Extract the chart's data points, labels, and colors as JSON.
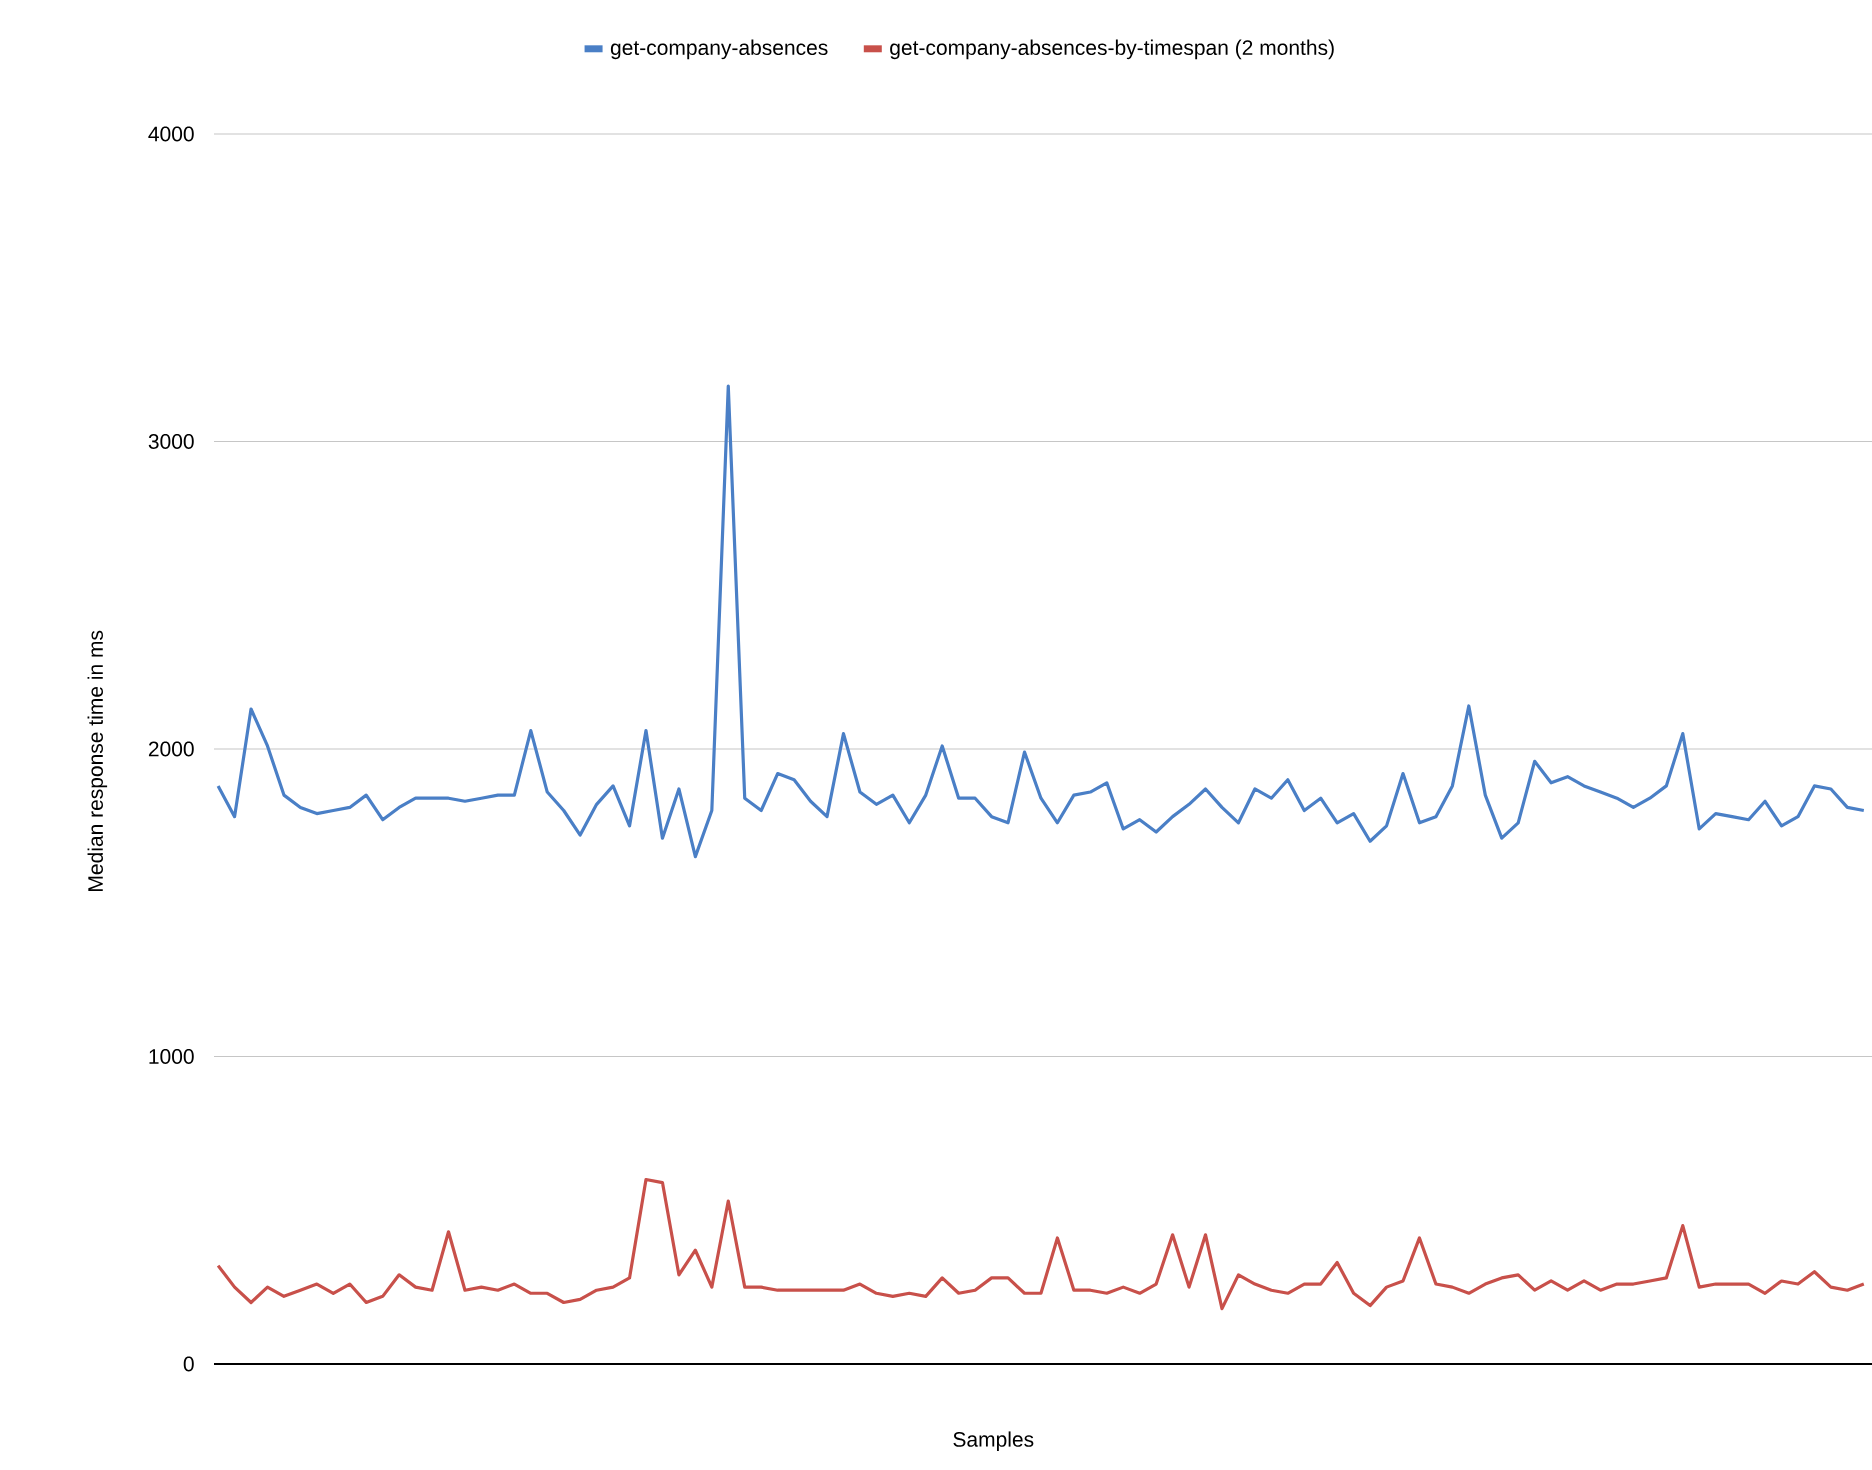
{
  "chart_data": {
    "type": "line",
    "xlabel": "Samples",
    "ylabel": "Median response time in ms",
    "categories": [
      null,
      null,
      null,
      null,
      null,
      null,
      null,
      null,
      null,
      null,
      null,
      null,
      null,
      null,
      null,
      null,
      null,
      null,
      null,
      null,
      null,
      null,
      null,
      null,
      null,
      null,
      null,
      null,
      null,
      null,
      null,
      null,
      null,
      null,
      null,
      null,
      null,
      null,
      null,
      null,
      null,
      null,
      null,
      null,
      null,
      null,
      null,
      null,
      null,
      null,
      null,
      null,
      null,
      null,
      null,
      null,
      null,
      null,
      null,
      null,
      null,
      null,
      null,
      null,
      null,
      null,
      null,
      null,
      null,
      null,
      null,
      null,
      null,
      null,
      null,
      null,
      null,
      null,
      null,
      null,
      null,
      null,
      null,
      null,
      null,
      null,
      null,
      null,
      null,
      null,
      null,
      null,
      null,
      null,
      null,
      null,
      null,
      null,
      null,
      null,
      null
    ],
    "series": [
      {
        "name": "get-company-absences",
        "color": "#4a7fc6",
        "values": [
          1880,
          1780,
          2130,
          2010,
          1850,
          1810,
          1790,
          1800,
          1810,
          1850,
          1770,
          1810,
          1840,
          1840,
          1840,
          1830,
          1840,
          1850,
          1850,
          2060,
          1860,
          1800,
          1720,
          1820,
          1880,
          1750,
          2060,
          1710,
          1870,
          1650,
          1800,
          3180,
          1840,
          1800,
          1920,
          1900,
          1830,
          1780,
          2050,
          1860,
          1820,
          1850,
          1760,
          1850,
          2010,
          1840,
          1840,
          1780,
          1760,
          1990,
          1840,
          1760,
          1850,
          1860,
          1890,
          1740,
          1770,
          1730,
          1780,
          1820,
          1870,
          1810,
          1760,
          1870,
          1840,
          1900,
          1800,
          1840,
          1760,
          1790,
          1700,
          1750,
          1920,
          1760,
          1780,
          1880,
          2140,
          1850,
          1710,
          1760,
          1960,
          1890,
          1910,
          1880,
          1860,
          1840,
          1810,
          1840,
          1880,
          2050,
          1740,
          1790,
          1780,
          1770,
          1830,
          1750,
          1780,
          1880,
          1870,
          1810,
          1800
        ]
      },
      {
        "name": "get-company-absences-by-timespan (2 months)",
        "color": "#c8504a",
        "values": [
          320,
          250,
          200,
          250,
          220,
          240,
          260,
          230,
          260,
          200,
          220,
          290,
          250,
          240,
          430,
          240,
          250,
          240,
          260,
          230,
          230,
          200,
          210,
          240,
          250,
          280,
          600,
          590,
          290,
          370,
          250,
          530,
          250,
          250,
          240,
          240,
          240,
          240,
          240,
          260,
          230,
          220,
          230,
          220,
          280,
          230,
          240,
          280,
          280,
          230,
          230,
          410,
          240,
          240,
          230,
          250,
          230,
          260,
          420,
          250,
          420,
          180,
          290,
          260,
          240,
          230,
          260,
          260,
          330,
          230,
          190,
          250,
          270,
          410,
          260,
          250,
          230,
          260,
          280,
          290,
          240,
          270,
          240,
          270,
          240,
          260,
          260,
          270,
          280,
          450,
          250,
          260,
          260,
          260,
          230,
          270,
          260,
          300,
          250,
          240,
          260
        ]
      }
    ],
    "ylim": [
      0,
      4000
    ],
    "yticks": [
      0,
      1000,
      2000,
      3000,
      4000
    ],
    "grid": "y",
    "legend": "top",
    "tick_labels": "y"
  }
}
